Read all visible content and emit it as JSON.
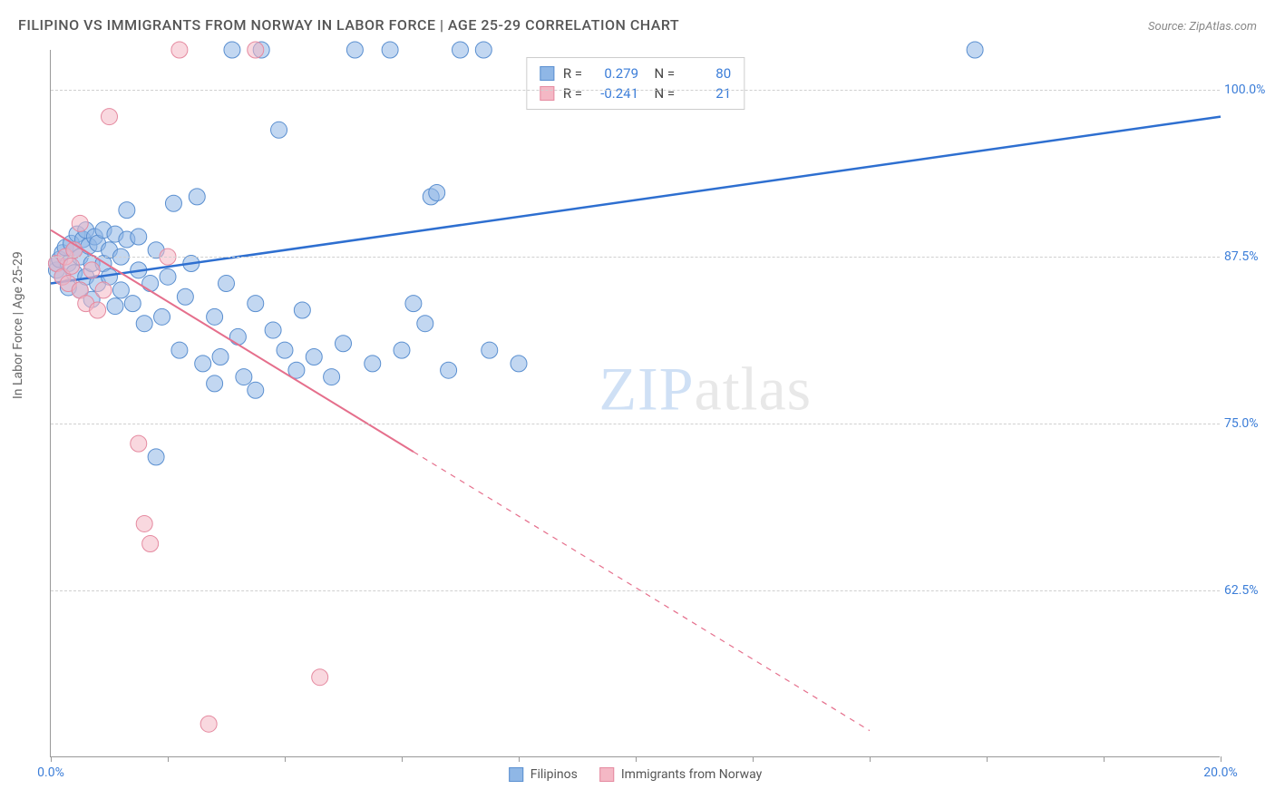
{
  "title": "FILIPINO VS IMMIGRANTS FROM NORWAY IN LABOR FORCE | AGE 25-29 CORRELATION CHART",
  "source": "Source: ZipAtlas.com",
  "y_axis_label": "In Labor Force | Age 25-29",
  "watermark": {
    "part1": "ZIP",
    "part2": "atlas"
  },
  "chart": {
    "type": "scatter",
    "background_color": "#ffffff",
    "grid_color": "#d0d0d0",
    "axis_color": "#999999",
    "xlim": [
      0,
      20
    ],
    "ylim": [
      50,
      103
    ],
    "x_ticks": [
      0,
      2,
      4,
      6,
      8,
      10,
      12,
      14,
      16,
      18,
      20
    ],
    "x_tick_labels": {
      "0": "0.0%",
      "20": "20.0%"
    },
    "y_gridlines": [
      62.5,
      75.0,
      87.5,
      100.0
    ],
    "y_tick_labels": [
      "62.5%",
      "75.0%",
      "87.5%",
      "100.0%"
    ],
    "marker_radius": 9,
    "marker_opacity": 0.55,
    "series": [
      {
        "name": "Filipinos",
        "color_fill": "#8fb7e6",
        "color_stroke": "#5a8fd0",
        "r_value": "0.279",
        "n_value": "80",
        "trendline": {
          "x1": 0,
          "y1": 85.5,
          "x2": 20,
          "y2": 98.0,
          "width": 2.5,
          "color": "#2e6fd0",
          "dash_from_x": null
        },
        "points": [
          [
            0.1,
            86.5
          ],
          [
            0.1,
            87.0
          ],
          [
            0.15,
            87.3
          ],
          [
            0.2,
            86.0
          ],
          [
            0.2,
            87.8
          ],
          [
            0.25,
            88.2
          ],
          [
            0.3,
            85.2
          ],
          [
            0.3,
            87.0
          ],
          [
            0.35,
            88.5
          ],
          [
            0.4,
            86.3
          ],
          [
            0.4,
            88.0
          ],
          [
            0.45,
            89.2
          ],
          [
            0.5,
            85.0
          ],
          [
            0.5,
            87.5
          ],
          [
            0.55,
            88.8
          ],
          [
            0.6,
            86.0
          ],
          [
            0.6,
            89.5
          ],
          [
            0.65,
            88.3
          ],
          [
            0.7,
            84.3
          ],
          [
            0.7,
            87.0
          ],
          [
            0.75,
            89.0
          ],
          [
            0.8,
            85.5
          ],
          [
            0.8,
            88.5
          ],
          [
            0.9,
            87.0
          ],
          [
            0.9,
            89.5
          ],
          [
            1.0,
            86.0
          ],
          [
            1.0,
            88.0
          ],
          [
            1.1,
            83.8
          ],
          [
            1.1,
            89.2
          ],
          [
            1.2,
            85.0
          ],
          [
            1.2,
            87.5
          ],
          [
            1.3,
            88.8
          ],
          [
            1.4,
            84.0
          ],
          [
            1.5,
            86.5
          ],
          [
            1.5,
            89.0
          ],
          [
            1.6,
            82.5
          ],
          [
            1.7,
            85.5
          ],
          [
            1.8,
            88.0
          ],
          [
            1.9,
            83.0
          ],
          [
            2.0,
            86.0
          ],
          [
            2.1,
            91.5
          ],
          [
            2.2,
            80.5
          ],
          [
            2.3,
            84.5
          ],
          [
            2.4,
            87.0
          ],
          [
            2.5,
            92.0
          ],
          [
            2.6,
            79.5
          ],
          [
            2.8,
            83.0
          ],
          [
            2.9,
            80.0
          ],
          [
            3.0,
            85.5
          ],
          [
            3.1,
            103.0
          ],
          [
            3.2,
            81.5
          ],
          [
            3.3,
            78.5
          ],
          [
            3.5,
            84.0
          ],
          [
            3.6,
            103.0
          ],
          [
            3.8,
            82.0
          ],
          [
            3.9,
            97.0
          ],
          [
            4.0,
            80.5
          ],
          [
            4.2,
            79.0
          ],
          [
            4.3,
            83.5
          ],
          [
            4.5,
            80.0
          ],
          [
            4.8,
            78.5
          ],
          [
            5.0,
            81.0
          ],
          [
            5.2,
            103.0
          ],
          [
            5.5,
            79.5
          ],
          [
            5.8,
            103.0
          ],
          [
            6.0,
            80.5
          ],
          [
            6.2,
            84.0
          ],
          [
            6.4,
            82.5
          ],
          [
            6.5,
            92.0
          ],
          [
            6.6,
            92.3
          ],
          [
            6.8,
            79.0
          ],
          [
            7.0,
            103.0
          ],
          [
            7.4,
            103.0
          ],
          [
            7.5,
            80.5
          ],
          [
            8.0,
            79.5
          ],
          [
            1.8,
            72.5
          ],
          [
            2.8,
            78.0
          ],
          [
            3.5,
            77.5
          ],
          [
            15.8,
            103.0
          ],
          [
            1.3,
            91.0
          ]
        ]
      },
      {
        "name": "Immigrants from Norway",
        "color_fill": "#f4b8c5",
        "color_stroke": "#e58aa0",
        "r_value": "-0.241",
        "n_value": "21",
        "trendline": {
          "x1": 0,
          "y1": 89.5,
          "x2": 14,
          "y2": 52.0,
          "width": 2,
          "color": "#e56f8c",
          "dash_from_x": 6.2
        },
        "points": [
          [
            0.1,
            87.0
          ],
          [
            0.2,
            86.0
          ],
          [
            0.25,
            87.5
          ],
          [
            0.3,
            85.5
          ],
          [
            0.35,
            86.8
          ],
          [
            0.4,
            88.0
          ],
          [
            0.5,
            85.0
          ],
          [
            0.5,
            90.0
          ],
          [
            0.6,
            84.0
          ],
          [
            0.7,
            86.5
          ],
          [
            0.8,
            83.5
          ],
          [
            0.9,
            85.0
          ],
          [
            1.0,
            98.0
          ],
          [
            1.5,
            73.5
          ],
          [
            1.6,
            67.5
          ],
          [
            1.7,
            66.0
          ],
          [
            2.0,
            87.5
          ],
          [
            2.2,
            103.0
          ],
          [
            2.7,
            52.5
          ],
          [
            3.5,
            103.0
          ],
          [
            4.6,
            56.0
          ]
        ]
      }
    ]
  },
  "bottom_legend": [
    {
      "label": "Filipinos",
      "fill": "#8fb7e6",
      "stroke": "#5a8fd0"
    },
    {
      "label": "Immigrants from Norway",
      "fill": "#f4b8c5",
      "stroke": "#e58aa0"
    }
  ]
}
